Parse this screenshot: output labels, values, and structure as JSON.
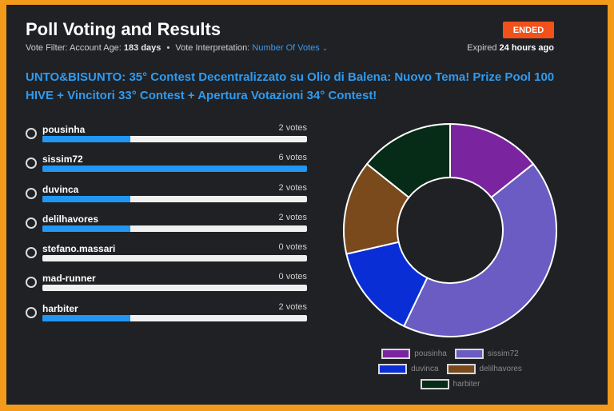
{
  "header": {
    "title": "Poll Voting and Results",
    "status_badge": "ENDED",
    "vote_filter_label": "Vote Filter:",
    "account_age_label": "Account Age:",
    "account_age_value": "183 days",
    "separator": "•",
    "interpretation_label": "Vote Interpretation:",
    "interpretation_value": "Number Of Votes",
    "expired_label": "Expired",
    "expired_value": "24 hours ago"
  },
  "post_title": "UNTO&BISUNTO: 35° Contest Decentralizzato su Olio di Balena: Nuovo Tema! Prize Pool 100 HIVE + Vincitori 33° Contest + Apertura Votazioni 34° Contest!",
  "options": [
    {
      "label": "pousinha",
      "votes_text": "2 votes",
      "votes": 2
    },
    {
      "label": "sissim72",
      "votes_text": "6 votes",
      "votes": 6
    },
    {
      "label": "duvinca",
      "votes_text": "2 votes",
      "votes": 2
    },
    {
      "label": "delilhavores",
      "votes_text": "2 votes",
      "votes": 2
    },
    {
      "label": "stefano.massari",
      "votes_text": "0 votes",
      "votes": 0
    },
    {
      "label": "mad-runner",
      "votes_text": "0 votes",
      "votes": 0
    },
    {
      "label": "harbiter",
      "votes_text": "2 votes",
      "votes": 2
    }
  ],
  "colors": {
    "accent": "#2196f3",
    "badge": "#f1511b",
    "background": "#1f2124",
    "frame": "#f39a1a"
  },
  "chart_data": {
    "type": "pie",
    "style": "doughnut",
    "categories": [
      "pousinha",
      "sissim72",
      "duvinca",
      "delilhavores",
      "harbiter"
    ],
    "values": [
      2,
      6,
      2,
      2,
      2
    ],
    "colors": [
      "#7b24a0",
      "#6a5cc2",
      "#0a2ed6",
      "#7a4a1d",
      "#062b16"
    ],
    "legend_position": "bottom"
  }
}
